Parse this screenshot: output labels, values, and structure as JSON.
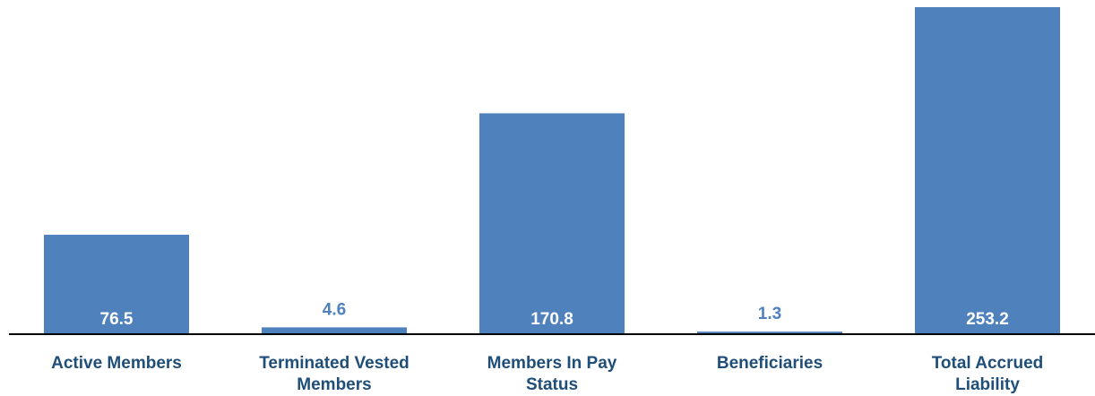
{
  "chart_data": {
    "type": "bar",
    "categories": [
      [
        "Active Members"
      ],
      [
        "Terminated Vested",
        "Members"
      ],
      [
        "Members In Pay",
        "Status"
      ],
      [
        "Beneficiaries"
      ],
      [
        "Total Accrued",
        "Liability"
      ]
    ],
    "values": [
      76.5,
      4.6,
      170.8,
      1.3,
      253.2
    ],
    "value_labels": [
      "76.5",
      "4.6",
      "170.8",
      "1.3",
      "253.2"
    ],
    "ylim": [
      0,
      253.2
    ],
    "grid": false,
    "legend": "none",
    "colors": {
      "bar": "#4F81BD",
      "label_dark": "#1F4E79",
      "label_inside": "#FFFFFF",
      "axis": "#000000"
    }
  }
}
